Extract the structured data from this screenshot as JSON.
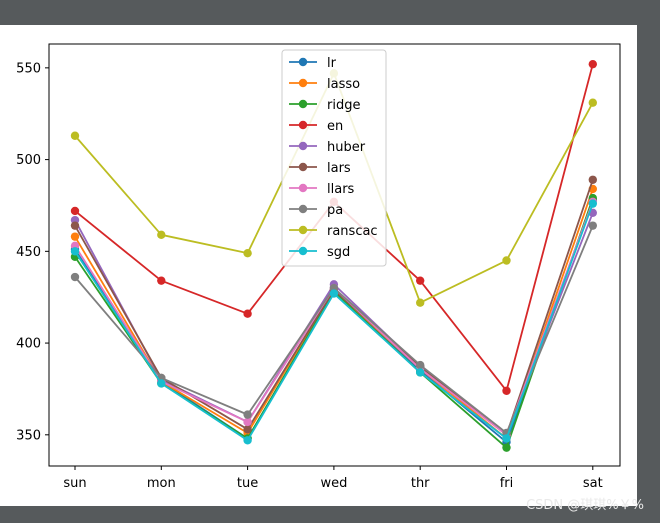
{
  "chart_data": {
    "type": "line",
    "title": "",
    "xlabel": "",
    "ylabel": "",
    "categories": [
      "sun",
      "mon",
      "tue",
      "wed",
      "thr",
      "fri",
      "sat"
    ],
    "ylim": [
      333,
      563
    ],
    "yticks": [
      350,
      400,
      450,
      500,
      550
    ],
    "legend_position": "top-center",
    "grid": false,
    "series": [
      {
        "name": "lr",
        "color": "#1f77b4",
        "values": [
          451,
          379,
          348,
          428,
          385,
          346,
          478
        ]
      },
      {
        "name": "lasso",
        "color": "#ff7f0e",
        "values": [
          458,
          379,
          351,
          429,
          386,
          348,
          484
        ]
      },
      {
        "name": "ridge",
        "color": "#2ca02c",
        "values": [
          447,
          378,
          348,
          428,
          384,
          343,
          479
        ]
      },
      {
        "name": "en",
        "color": "#d62728",
        "values": [
          472,
          434,
          416,
          477,
          434,
          374,
          552
        ]
      },
      {
        "name": "huber",
        "color": "#9467bd",
        "values": [
          467,
          380,
          357,
          432,
          387,
          350,
          471
        ]
      },
      {
        "name": "lars",
        "color": "#8c564b",
        "values": [
          464,
          381,
          353,
          429,
          387,
          350,
          489
        ]
      },
      {
        "name": "llars",
        "color": "#e377c2",
        "values": [
          453,
          379,
          357,
          430,
          386,
          350,
          477
        ]
      },
      {
        "name": "pa",
        "color": "#7f7f7f",
        "values": [
          436,
          381,
          361,
          430,
          388,
          351,
          464
        ]
      },
      {
        "name": "ranscac",
        "color": "#bcbd22",
        "values": [
          513,
          459,
          449,
          547,
          422,
          445,
          531
        ]
      },
      {
        "name": "sgd",
        "color": "#17becf",
        "values": [
          450,
          378,
          347,
          427,
          384,
          348,
          476
        ]
      }
    ]
  },
  "watermark": "CSDN @琪琪%￥%"
}
